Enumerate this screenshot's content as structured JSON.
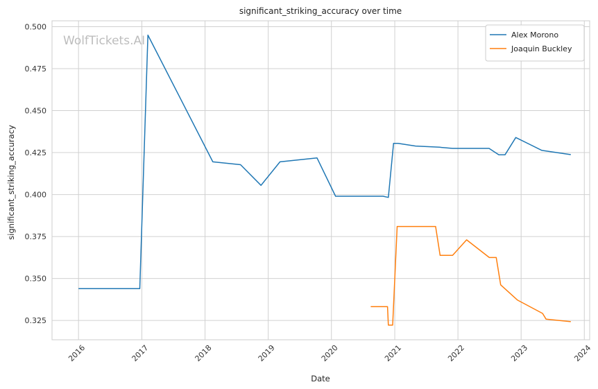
{
  "chart_data": {
    "type": "line",
    "title": "significant_striking_accuracy over time",
    "xlabel": "Date",
    "ylabel": "significant_striking_accuracy",
    "watermark": "WolfTickets.AI",
    "x_ticks": [
      "2016",
      "2017",
      "2018",
      "2019",
      "2020",
      "2021",
      "2022",
      "2023",
      "2024"
    ],
    "y_ticks": [
      "0.325",
      "0.350",
      "0.375",
      "0.400",
      "0.425",
      "0.450",
      "0.475",
      "0.500"
    ],
    "xlim": [
      "2015-08-01",
      "2024-02-01"
    ],
    "ylim": [
      0.3135,
      0.5035
    ],
    "grid": true,
    "legend_position": "top-right",
    "series": [
      {
        "name": "Alex Morono",
        "color": "#1f77b4",
        "points": [
          [
            "2016-01-01",
            0.344
          ],
          [
            "2016-12-20",
            0.344
          ],
          [
            "2017-02-05",
            0.495
          ],
          [
            "2018-02-15",
            0.4195
          ],
          [
            "2018-07-25",
            0.4178
          ],
          [
            "2018-11-20",
            0.4055
          ],
          [
            "2019-03-10",
            0.4195
          ],
          [
            "2019-10-10",
            0.4218
          ],
          [
            "2020-01-25",
            0.399
          ],
          [
            "2020-10-25",
            0.399
          ],
          [
            "2020-11-25",
            0.3983
          ],
          [
            "2020-12-25",
            0.4305
          ],
          [
            "2021-01-20",
            0.4305
          ],
          [
            "2021-05-01",
            0.4289
          ],
          [
            "2021-09-15",
            0.4282
          ],
          [
            "2021-12-01",
            0.4275
          ],
          [
            "2022-06-30",
            0.4275
          ],
          [
            "2022-08-25",
            0.4237
          ],
          [
            "2022-09-30",
            0.4237
          ],
          [
            "2022-12-01",
            0.434
          ],
          [
            "2023-05-01",
            0.4263
          ],
          [
            "2023-10-15",
            0.4238
          ]
        ]
      },
      {
        "name": "Joaquin Buckley",
        "color": "#ff7f0e",
        "points": [
          [
            "2020-08-15",
            0.3332
          ],
          [
            "2020-11-20",
            0.3332
          ],
          [
            "2020-11-25",
            0.3222
          ],
          [
            "2020-12-20",
            0.3222
          ],
          [
            "2021-01-15",
            0.381
          ],
          [
            "2021-08-25",
            0.381
          ],
          [
            "2021-09-20",
            0.3638
          ],
          [
            "2021-12-01",
            0.3638
          ],
          [
            "2022-02-20",
            0.373
          ],
          [
            "2022-07-01",
            0.3625
          ],
          [
            "2022-08-10",
            0.3625
          ],
          [
            "2022-09-05",
            0.3462
          ],
          [
            "2022-12-10",
            0.3372
          ],
          [
            "2023-05-05",
            0.3292
          ],
          [
            "2023-05-25",
            0.3258
          ],
          [
            "2023-10-15",
            0.3243
          ]
        ]
      }
    ]
  }
}
